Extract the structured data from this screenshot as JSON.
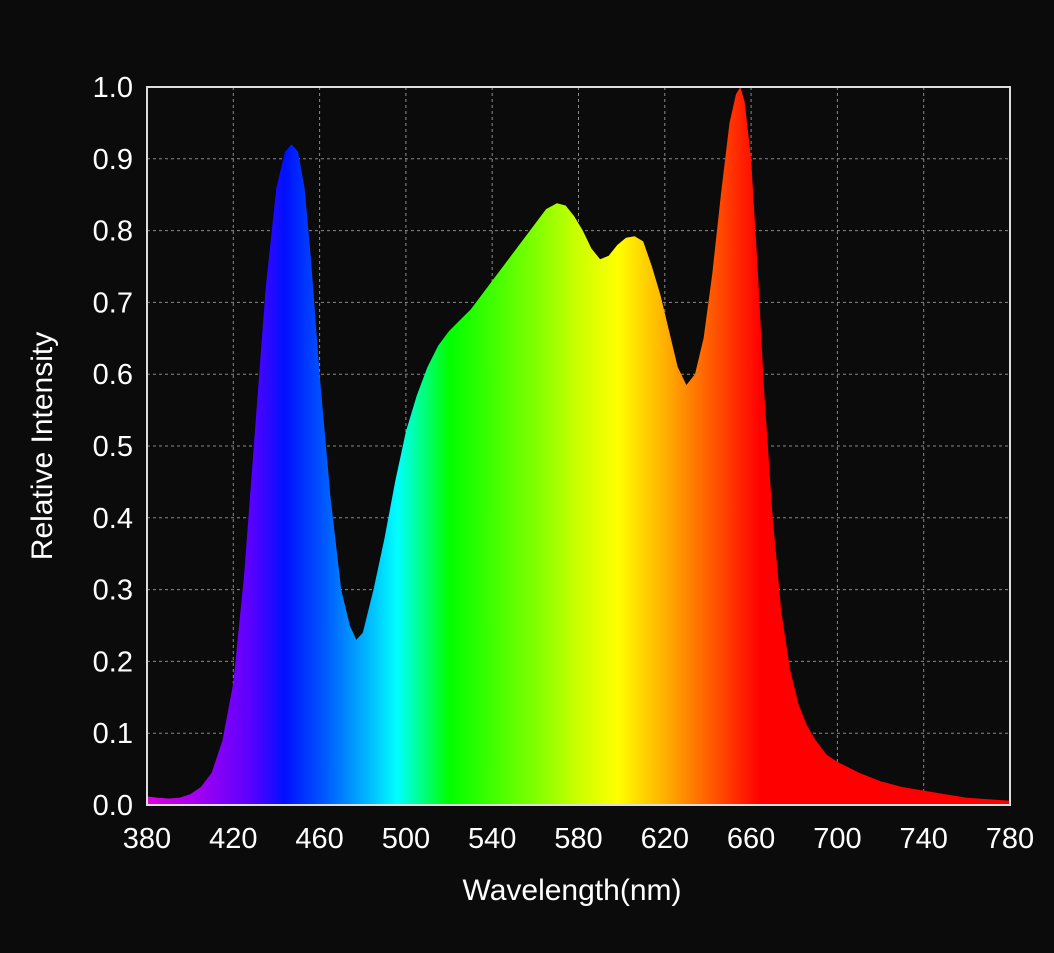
{
  "chart_data": {
    "type": "area",
    "title": "",
    "xlabel": "Wavelength(nm)",
    "ylabel": "Relative Intensity",
    "xlim": [
      380,
      780
    ],
    "ylim": [
      0,
      1.0
    ],
    "grid": true,
    "legend": "none",
    "xticks": [
      "380",
      "420",
      "460",
      "500",
      "540",
      "580",
      "620",
      "660",
      "700",
      "740",
      "780"
    ],
    "yticks": [
      "0.0",
      "0.1",
      "0.2",
      "0.3",
      "0.4",
      "0.5",
      "0.6",
      "0.7",
      "0.8",
      "0.9",
      "1.0"
    ],
    "fill": "visible-spectrum gradient by wavelength",
    "series": [
      {
        "name": "Relative Intensity",
        "x": [
          380,
          385,
          390,
          395,
          400,
          405,
          410,
          415,
          420,
          425,
          430,
          435,
          440,
          444,
          447,
          450,
          453,
          456,
          460,
          465,
          470,
          474,
          477,
          480,
          485,
          490,
          495,
          500,
          505,
          510,
          515,
          520,
          525,
          530,
          535,
          540,
          545,
          550,
          555,
          560,
          565,
          570,
          574,
          578,
          582,
          586,
          590,
          594,
          598,
          602,
          606,
          610,
          614,
          618,
          622,
          626,
          630,
          634,
          638,
          642,
          646,
          650,
          653,
          655,
          657,
          660,
          663,
          666,
          670,
          674,
          678,
          682,
          686,
          690,
          695,
          700,
          710,
          720,
          730,
          740,
          750,
          760,
          770,
          780
        ],
        "y": [
          0.012,
          0.01,
          0.009,
          0.01,
          0.015,
          0.025,
          0.045,
          0.09,
          0.17,
          0.32,
          0.52,
          0.72,
          0.86,
          0.91,
          0.92,
          0.91,
          0.86,
          0.76,
          0.6,
          0.43,
          0.3,
          0.25,
          0.23,
          0.24,
          0.3,
          0.37,
          0.45,
          0.52,
          0.57,
          0.61,
          0.64,
          0.66,
          0.675,
          0.69,
          0.71,
          0.73,
          0.75,
          0.77,
          0.79,
          0.81,
          0.83,
          0.838,
          0.835,
          0.82,
          0.8,
          0.775,
          0.76,
          0.765,
          0.78,
          0.79,
          0.792,
          0.785,
          0.75,
          0.71,
          0.66,
          0.61,
          0.585,
          0.6,
          0.65,
          0.74,
          0.85,
          0.95,
          0.99,
          1.0,
          0.98,
          0.9,
          0.75,
          0.58,
          0.4,
          0.27,
          0.19,
          0.14,
          0.11,
          0.09,
          0.07,
          0.06,
          0.045,
          0.033,
          0.025,
          0.02,
          0.015,
          0.01,
          0.008,
          0.006
        ]
      }
    ]
  }
}
